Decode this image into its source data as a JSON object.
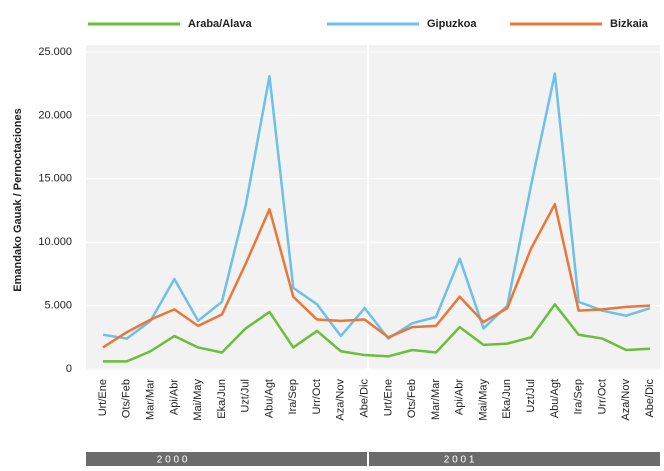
{
  "chart_data": {
    "type": "line",
    "y_label": "Emandako Gauak / Pernoctaciones",
    "categories": [
      "Urt/Ene",
      "Ots/Feb",
      "Mar/Mar",
      "Api/Abr",
      "Mai/May",
      "Eka/Jun",
      "Uzt/Jul",
      "Abu/Agt",
      "Ira/Sep",
      "Urr/Oct",
      "Aza/Nov",
      "Abe/Dic",
      "Urt/Ene",
      "Ots/Feb",
      "Mar/Mar",
      "Api/Abr",
      "Mai/May",
      "Eka/Jun",
      "Uzt/Jul",
      "Abu/Agt",
      "Ira/Sep",
      "Urr/Oct",
      "Aza/Nov",
      "Abe/Dic"
    ],
    "groups": [
      "2 0 0 0",
      "2 0 0 1"
    ],
    "series": [
      {
        "name": "Araba/Alava",
        "color": "#6abf3a",
        "values": [
          600,
          600,
          1400,
          2600,
          1700,
          1300,
          3200,
          4500,
          1700,
          3000,
          1400,
          1100,
          1000,
          1500,
          1300,
          3300,
          1900,
          2000,
          2500,
          5100,
          2700,
          2400,
          1500,
          1600
        ]
      },
      {
        "name": "Gipuzkoa",
        "color": "#6ec0e8",
        "values": [
          2700,
          2400,
          3800,
          7100,
          3800,
          5300,
          12900,
          23100,
          6400,
          5100,
          2600,
          4800,
          2400,
          3600,
          4100,
          8700,
          3200,
          5000,
          14500,
          23300,
          5300,
          4600,
          4200,
          4800
        ]
      },
      {
        "name": "Bizkaia",
        "color": "#e8773a",
        "values": [
          1700,
          2900,
          3900,
          4700,
          3400,
          4300,
          8300,
          12600,
          5700,
          3900,
          3800,
          3900,
          2500,
          3300,
          3400,
          5700,
          3700,
          4800,
          9500,
          13000,
          4600,
          4700,
          4900,
          5000
        ]
      }
    ],
    "ylim": [
      0,
      25000
    ],
    "yticks": [
      0,
      {
        "value": 5000,
        "label": "5.000"
      },
      {
        "value": 10000,
        "label": "10.000"
      },
      {
        "value": 15000,
        "label": "15.000"
      },
      {
        "value": 20000,
        "label": "20.000"
      },
      {
        "value": 25000,
        "label": "25.000"
      }
    ],
    "grid": true
  }
}
